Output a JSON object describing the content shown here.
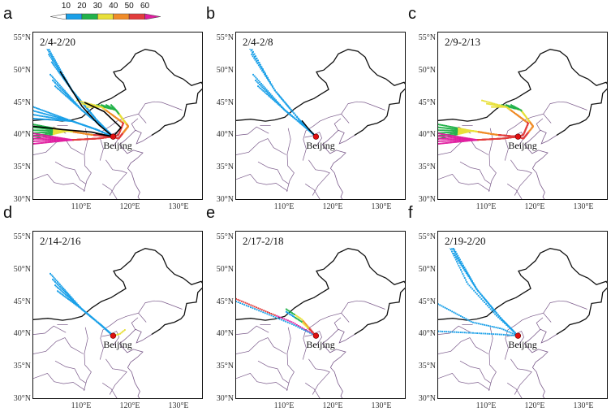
{
  "colorbar": {
    "ticks": [
      "10",
      "20",
      "30",
      "40",
      "50",
      "60"
    ],
    "colors": [
      "#ffffff",
      "#1aa0e8",
      "#22b24a",
      "#e8e03a",
      "#f08c28",
      "#e23c3c",
      "#e01ea0"
    ]
  },
  "axes": {
    "lat_labels": [
      "55°N",
      "50°N",
      "45°N",
      "40°N",
      "35°N",
      "30°N"
    ],
    "lon_labels": [
      "110°E",
      "120°E",
      "130°E"
    ]
  },
  "city": "Beijing",
  "panels": [
    {
      "letter": "a",
      "dates": "2/4-2/20"
    },
    {
      "letter": "b",
      "dates": "2/4-2/8"
    },
    {
      "letter": "c",
      "dates": "2/9-2/13"
    },
    {
      "letter": "d",
      "dates": "2/14-2/16"
    },
    {
      "letter": "e",
      "dates": "2/17-2/18"
    },
    {
      "letter": "f",
      "dates": "2/19-2/20"
    }
  ]
}
